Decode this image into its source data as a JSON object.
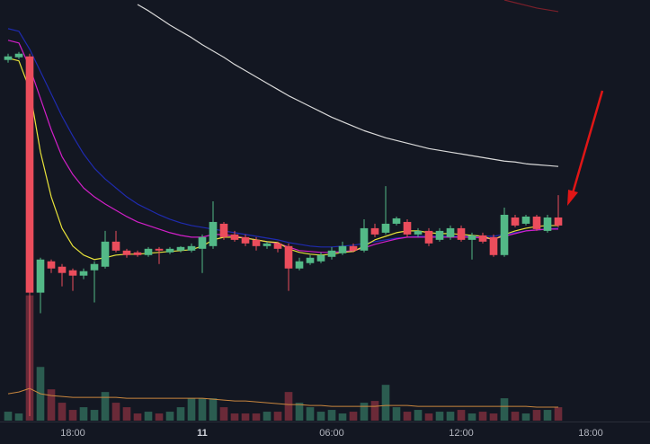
{
  "chart_data": {
    "type": "candlestick",
    "x": [
      0,
      1,
      2,
      3,
      4,
      5,
      6,
      7,
      8,
      9,
      10,
      11,
      12,
      13,
      14,
      15,
      16,
      17,
      18,
      19,
      20,
      21,
      22,
      23,
      24,
      25,
      26,
      27,
      28,
      29,
      30,
      31,
      32,
      33,
      34,
      35,
      36,
      37,
      38,
      39,
      40,
      41,
      42,
      43,
      44,
      45,
      46,
      47,
      48,
      49,
      50,
      51
    ],
    "xlim": [
      -0.75,
      59.5
    ],
    "xticks": [
      {
        "value": 6,
        "label": "18:00"
      },
      {
        "value": 18,
        "label": "11",
        "major": true
      },
      {
        "value": 30,
        "label": "06:00"
      },
      {
        "value": 42,
        "label": "12:00"
      },
      {
        "value": 54,
        "label": "18:00"
      }
    ],
    "ylim": [
      0,
      470
    ],
    "open": [
      403,
      406,
      407,
      143,
      178,
      172,
      168,
      162,
      168,
      172,
      200,
      190,
      188,
      185,
      192,
      188,
      190,
      190,
      192,
      195,
      220,
      208,
      205,
      202,
      195,
      198,
      195,
      170,
      176,
      178,
      183,
      187,
      195,
      190,
      215,
      210,
      220,
      222,
      208,
      212,
      202,
      205,
      215,
      202,
      207,
      205,
      185,
      227,
      220,
      228,
      212,
      227
    ],
    "high": [
      410,
      412,
      410,
      182,
      180,
      175,
      170,
      170,
      178,
      212,
      212,
      192,
      190,
      194,
      194,
      194,
      195,
      198,
      208,
      245,
      222,
      212,
      208,
      205,
      200,
      200,
      198,
      182,
      185,
      188,
      194,
      200,
      198,
      225,
      220,
      262,
      228,
      225,
      215,
      215,
      215,
      218,
      218,
      210,
      210,
      208,
      238,
      230,
      230,
      230,
      230,
      252
    ],
    "low": [
      400,
      404,
      5,
      120,
      165,
      150,
      145,
      158,
      132,
      170,
      188,
      182,
      183,
      183,
      175,
      186,
      188,
      188,
      165,
      192,
      202,
      200,
      195,
      190,
      192,
      188,
      145,
      168,
      174,
      176,
      180,
      185,
      188,
      188,
      205,
      208,
      218,
      205,
      205,
      195,
      200,
      202,
      200,
      180,
      198,
      183,
      183,
      216,
      218,
      212,
      210,
      216
    ],
    "close": [
      407,
      410,
      143,
      180,
      170,
      165,
      162,
      167,
      175,
      200,
      190,
      185,
      185,
      192,
      190,
      192,
      194,
      195,
      205,
      222,
      205,
      202,
      198,
      195,
      198,
      192,
      170,
      178,
      182,
      185,
      190,
      195,
      190,
      215,
      208,
      220,
      226,
      208,
      212,
      198,
      212,
      215,
      202,
      207,
      200,
      185,
      230,
      218,
      228,
      214,
      227,
      218
    ],
    "up_color": "#53b987",
    "down_color": "#eb4d5c",
    "volume": {
      "ylim": [
        0,
        470
      ],
      "up_color": "#2b5c50",
      "down_color": "#6a2a38",
      "values": [
        10,
        8,
        140,
        60,
        35,
        20,
        12,
        15,
        12,
        32,
        20,
        15,
        8,
        10,
        8,
        10,
        15,
        25,
        25,
        25,
        15,
        8,
        8,
        8,
        10,
        10,
        32,
        20,
        15,
        10,
        12,
        8,
        10,
        20,
        22,
        40,
        15,
        10,
        12,
        8,
        10,
        10,
        12,
        8,
        10,
        8,
        25,
        10,
        8,
        12,
        12,
        15
      ],
      "ma_color": "#c9863e",
      "ma": [
        30,
        32,
        36,
        30,
        28,
        27,
        26,
        26,
        26,
        26,
        26,
        25,
        25,
        25,
        25,
        25,
        25,
        25,
        25,
        24,
        23,
        22,
        22,
        21,
        20,
        19,
        18,
        18,
        17,
        17,
        16,
        16,
        16,
        16,
        16,
        17,
        17,
        17,
        16,
        16,
        16,
        16,
        16,
        16,
        16,
        16,
        16,
        16,
        16,
        15,
        15,
        15
      ]
    },
    "series": [
      {
        "color": "#7a1f2a",
        "values": [
          null,
          null,
          null,
          null,
          null,
          null,
          null,
          null,
          null,
          null,
          null,
          null,
          null,
          null,
          null,
          null,
          null,
          null,
          null,
          null,
          null,
          null,
          null,
          null,
          null,
          null,
          null,
          null,
          null,
          null,
          null,
          null,
          null,
          null,
          null,
          null,
          null,
          null,
          null,
          null,
          null,
          null,
          null,
          null,
          null,
          null,
          470,
          467,
          464,
          461,
          459,
          457
        ]
      },
      {
        "color": "#d9d9d9",
        "values": [
          null,
          null,
          null,
          null,
          null,
          null,
          null,
          null,
          null,
          null,
          null,
          null,
          465,
          458,
          450,
          442,
          435,
          428,
          420,
          413,
          406,
          398,
          391,
          384,
          377,
          370,
          363,
          357,
          351,
          345,
          339,
          334,
          329,
          324,
          320,
          316,
          313,
          310,
          307,
          304,
          302,
          300,
          298,
          296,
          294,
          292,
          290,
          289,
          287,
          286,
          285,
          284
        ]
      },
      {
        "color": "#1f2bb0",
        "values": [
          438,
          435,
          415,
          390,
          365,
          340,
          318,
          298,
          282,
          270,
          260,
          250,
          242,
          236,
          230,
          225,
          221,
          218,
          216,
          214,
          212,
          210,
          208,
          206,
          204,
          202,
          199,
          197,
          195,
          194,
          194,
          195,
          196,
          198,
          200,
          202,
          204,
          205,
          206,
          206,
          206,
          206,
          206,
          206,
          206,
          206,
          208,
          210,
          212,
          213,
          214,
          215
        ]
      },
      {
        "color": "#d21fc8",
        "values": [
          425,
          422,
          395,
          360,
          325,
          295,
          275,
          260,
          250,
          242,
          235,
          228,
          222,
          218,
          214,
          210,
          207,
          205,
          205,
          208,
          208,
          206,
          204,
          202,
          200,
          198,
          194,
          190,
          189,
          188,
          188,
          189,
          190,
          193,
          197,
          200,
          203,
          205,
          205,
          205,
          205,
          205,
          205,
          205,
          204,
          203,
          206,
          209,
          212,
          213,
          214,
          214
        ]
      },
      {
        "color": "#e8e33a",
        "values": [
          405,
          402,
          370,
          300,
          250,
          215,
          195,
          185,
          180,
          182,
          185,
          186,
          186,
          187,
          188,
          189,
          190,
          191,
          195,
          202,
          205,
          205,
          204,
          202,
          200,
          199,
          192,
          188,
          186,
          185,
          186,
          188,
          189,
          195,
          202,
          206,
          210,
          212,
          212,
          210,
          209,
          209,
          208,
          207,
          206,
          202,
          208,
          212,
          215,
          217,
          218,
          218
        ]
      }
    ]
  }
}
